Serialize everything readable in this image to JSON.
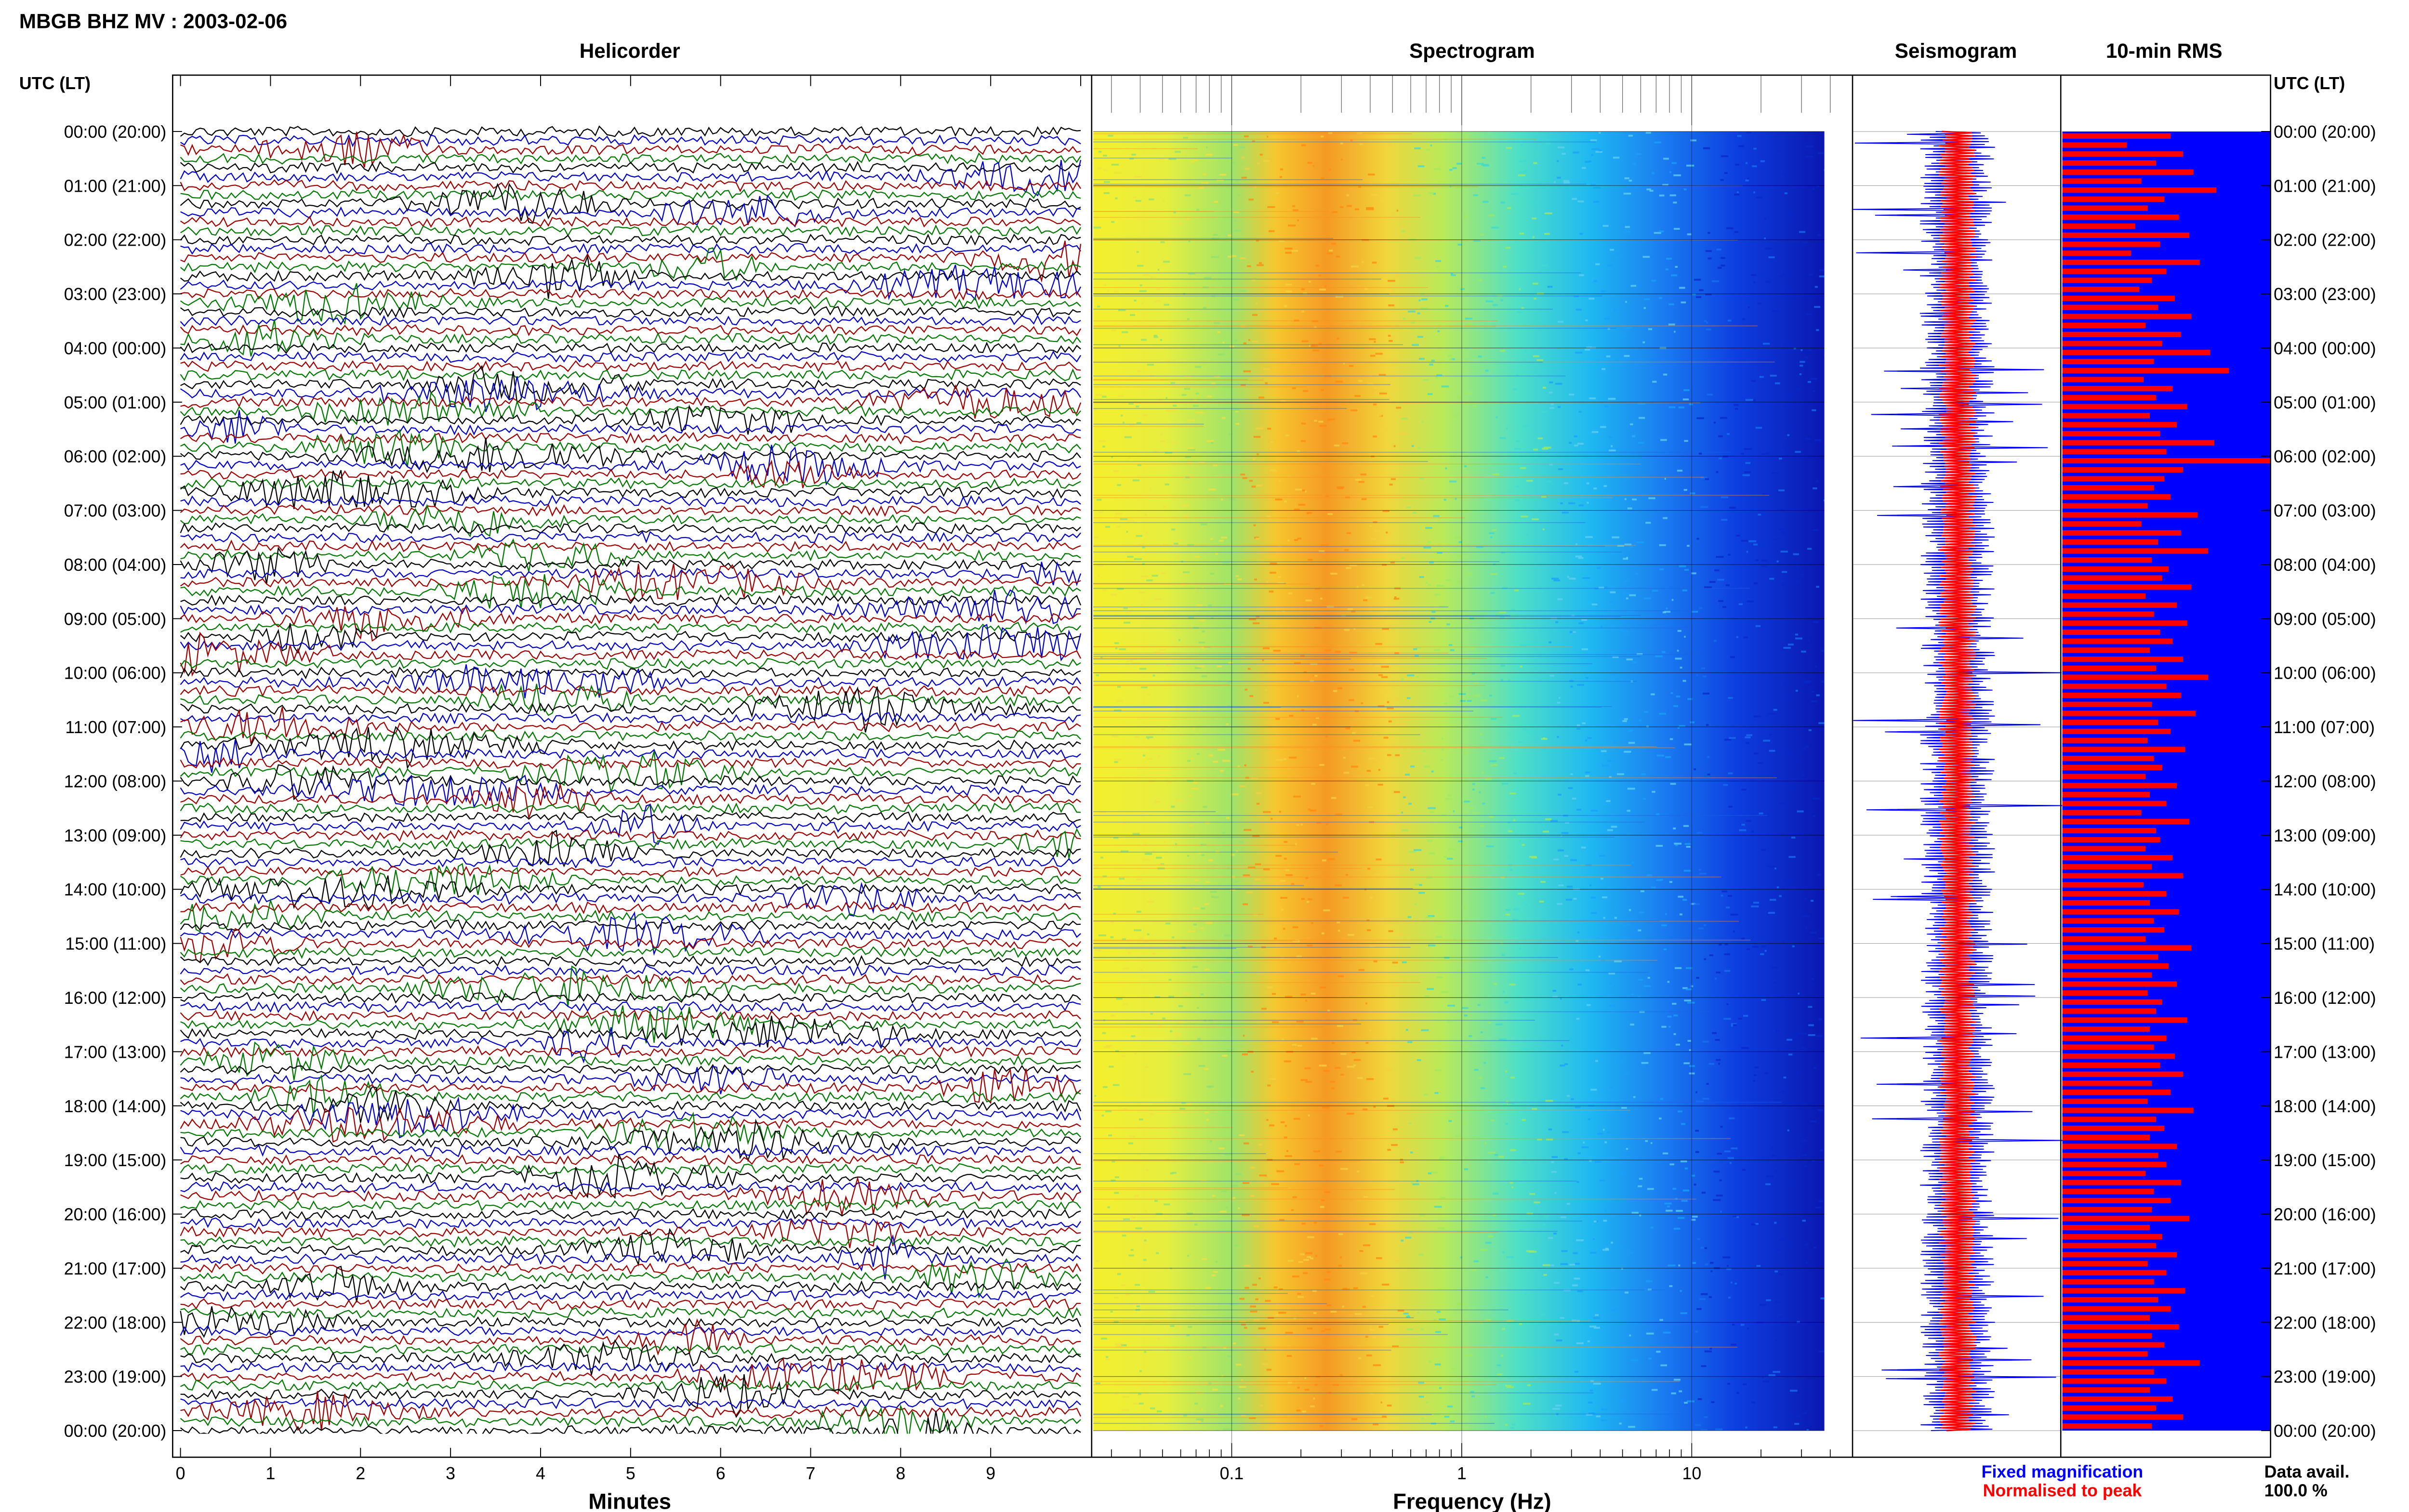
{
  "header": {
    "title": "MBGB BHZ MV : 2003-02-06"
  },
  "panels": {
    "helicorder": "Helicorder",
    "spectrogram": "Spectrogram",
    "seismogram": "Seismogram",
    "rms": "10-min RMS"
  },
  "axis": {
    "time_label_left": "UTC (LT)",
    "time_label_right": "UTC (LT)",
    "time_ticks": [
      "00:00 (20:00)",
      "01:00 (21:00)",
      "02:00 (22:00)",
      "03:00 (23:00)",
      "04:00 (00:00)",
      "05:00 (01:00)",
      "06:00 (02:00)",
      "07:00 (03:00)",
      "08:00 (04:00)",
      "09:00 (05:00)",
      "10:00 (06:00)",
      "11:00 (07:00)",
      "12:00 (08:00)",
      "13:00 (09:00)",
      "14:00 (10:00)",
      "15:00 (11:00)",
      "16:00 (12:00)",
      "17:00 (13:00)",
      "18:00 (14:00)",
      "19:00 (15:00)",
      "20:00 (16:00)",
      "21:00 (17:00)",
      "22:00 (18:00)",
      "23:00 (19:00)",
      "00:00 (20:00)"
    ],
    "minutes_label": "Minutes",
    "minutes_ticks": [
      "0",
      "1",
      "2",
      "3",
      "4",
      "5",
      "6",
      "7",
      "8",
      "9"
    ],
    "frequency_label": "Frequency (Hz)",
    "frequency_ticks": [
      "0.1",
      "1",
      "10"
    ]
  },
  "legend": {
    "fixed": "Fixed magnification",
    "normalised": "Normalised to peak",
    "fixed_color": "#0000ff",
    "normalised_color": "#ff0000"
  },
  "data_availability": {
    "label": "Data avail.",
    "value": "100.0 %"
  },
  "colors": {
    "helicorder_cycle": [
      "#000000",
      "#0000c8",
      "#a00000",
      "#007800"
    ],
    "seismogram_fixed": "#0000ff",
    "seismogram_normalised": "#ff0000",
    "rms_background": "#0000ff",
    "rms_bars": "#ff0000",
    "spectrogram_scale": [
      "#0000a0",
      "#0050ff",
      "#00c8ff",
      "#80ff80",
      "#ffff00",
      "#ff9000",
      "#ff2000"
    ]
  },
  "chart_data": [
    {
      "type": "line",
      "title": "Helicorder",
      "xlabel": "Minutes",
      "xlim": [
        0,
        10
      ],
      "ylabel": "UTC (LT)",
      "lines_per_hour": 6,
      "hours": 24,
      "note_series": "one trace per 10-minute interval, colors cycle black/blue/red/green"
    },
    {
      "type": "heatmap",
      "title": "Spectrogram",
      "xlabel": "Frequency (Hz)",
      "x_scale": "log",
      "xlim": [
        0.025,
        50
      ],
      "xticks": [
        0.1,
        1,
        10
      ],
      "ylim_hours": [
        0,
        24
      ],
      "dominant_band_hz": [
        0.15,
        0.45
      ]
    },
    {
      "type": "line",
      "title": "Seismogram",
      "series": [
        {
          "name": "Fixed magnification"
        },
        {
          "name": "Normalised to peak"
        }
      ]
    },
    {
      "type": "bar",
      "title": "10-min RMS",
      "intervals": 144,
      "values_relative": [
        0.52,
        0.31,
        0.58,
        0.45,
        0.63,
        0.38,
        0.74,
        0.49,
        0.41,
        0.56,
        0.35,
        0.61,
        0.47,
        0.33,
        0.66,
        0.5,
        0.43,
        0.37,
        0.54,
        0.46,
        0.62,
        0.4,
        0.57,
        0.48,
        0.71,
        0.44,
        0.8,
        0.39,
        0.53,
        0.45,
        0.6,
        0.42,
        0.55,
        0.47,
        0.73,
        0.5,
        1.0,
        0.58,
        0.49,
        0.44,
        0.52,
        0.41,
        0.65,
        0.38,
        0.57,
        0.46,
        0.7,
        0.43,
        0.51,
        0.48,
        0.62,
        0.4,
        0.55,
        0.44,
        0.6,
        0.47,
        0.53,
        0.42,
        0.58,
        0.45,
        0.7,
        0.5,
        0.57,
        0.43,
        0.64,
        0.46,
        0.52,
        0.41,
        0.59,
        0.44,
        0.48,
        0.4,
        0.55,
        0.42,
        0.5,
        0.38,
        0.61,
        0.45,
        0.47,
        0.4,
        0.53,
        0.43,
        0.58,
        0.39,
        0.5,
        0.42,
        0.56,
        0.44,
        0.49,
        0.4,
        0.62,
        0.46,
        0.51,
        0.43,
        0.55,
        0.41,
        0.48,
        0.45,
        0.6,
        0.42,
        0.5,
        0.44,
        0.54,
        0.47,
        0.58,
        0.43,
        0.52,
        0.41,
        0.63,
        0.45,
        0.49,
        0.42,
        0.55,
        0.46,
        0.5,
        0.4,
        0.57,
        0.44,
        0.52,
        0.43,
        0.61,
        0.42,
        0.48,
        0.45,
        0.55,
        0.41,
        0.5,
        0.44,
        0.59,
        0.46,
        0.52,
        0.42,
        0.56,
        0.43,
        0.49,
        0.41,
        0.66,
        0.44,
        0.5,
        0.42,
        0.53,
        0.45,
        0.58,
        0.43
      ]
    }
  ]
}
